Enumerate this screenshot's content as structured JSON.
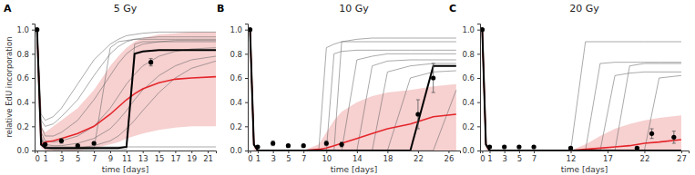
{
  "chart_data": [
    {
      "type": "line",
      "panel": "A",
      "title": "5 Gy",
      "x_label": "time [days]",
      "y_label": "relative EdU incorporation",
      "xlim": [
        -0.3,
        22
      ],
      "xticks": [
        0,
        1,
        3,
        5,
        7,
        9,
        11,
        13,
        15,
        17,
        19,
        21
      ],
      "ylim": [
        0,
        1.05
      ],
      "yticks": [
        {
          "value": 0,
          "label": "0.0"
        },
        0.2,
        0.4,
        0.6,
        0.8,
        {
          "value": 1,
          "label": "1.0"
        }
      ],
      "x": [
        0,
        0.5,
        1,
        2,
        3,
        5,
        7,
        9,
        10,
        11,
        12,
        13,
        15,
        17,
        19,
        22
      ],
      "series": [
        {
          "type": "band",
          "color": "#f6c8c8",
          "lower": [
            1,
            0.02,
            0,
            0,
            0,
            0,
            0.02,
            0.05,
            0.07,
            0.1,
            0.12,
            0.14,
            0.17,
            0.19,
            0.2,
            0.2
          ],
          "upper": [
            1,
            0.2,
            0.15,
            0.2,
            0.25,
            0.35,
            0.5,
            0.7,
            0.78,
            0.85,
            0.9,
            0.93,
            0.96,
            0.97,
            0.98,
            0.98
          ]
        },
        {
          "type": "line",
          "color": "#666666",
          "line_style": "thin",
          "values": [
            1,
            0.3,
            0.25,
            0.28,
            0.35,
            0.55,
            0.75,
            0.88,
            0.92,
            0.95,
            0.96,
            0.97,
            0.98,
            0.98,
            0.98,
            0.98
          ]
        },
        {
          "type": "line",
          "color": "#666666",
          "line_style": "thin",
          "values": [
            1,
            0.2,
            0.12,
            0.12,
            0.15,
            0.25,
            0.42,
            0.62,
            0.72,
            0.8,
            0.85,
            0.88,
            0.9,
            0.91,
            0.91,
            0.91
          ]
        },
        {
          "type": "line",
          "color": "#666666",
          "line_style": "thin",
          "values": [
            1,
            0.15,
            0.08,
            0.07,
            0.08,
            0.12,
            0.2,
            0.35,
            0.45,
            0.55,
            0.63,
            0.7,
            0.78,
            0.82,
            0.84,
            0.85
          ]
        },
        {
          "type": "line",
          "color": "#666666",
          "line_style": "thin",
          "values": [
            1,
            0.12,
            0.05,
            0.04,
            0.04,
            0.06,
            0.1,
            0.18,
            0.25,
            0.33,
            0.42,
            0.5,
            0.62,
            0.7,
            0.75,
            0.78
          ]
        },
        {
          "type": "line",
          "color": "#666666",
          "line_style": "thin",
          "values": [
            1,
            0.1,
            0.03,
            0.02,
            0.02,
            0.02,
            0.04,
            0.08,
            0.12,
            0.18,
            0.25,
            0.33,
            0.48,
            0.6,
            0.68,
            0.74
          ]
        },
        {
          "type": "line",
          "color": "#666666",
          "line_style": "thin",
          "values": [
            1,
            0.1,
            0.02,
            0.01,
            0.01,
            0.01,
            0.01,
            0.01,
            0.01,
            0.01,
            0.88,
            0.9,
            0.9,
            0.9,
            0.9,
            0.9
          ]
        },
        {
          "type": "line",
          "color": "#666666",
          "line_style": "thin",
          "values": [
            1,
            0.1,
            0.02,
            0.01,
            0.01,
            0.01,
            0.01,
            0.85,
            0.9,
            0.91,
            0.92,
            0.92,
            0.92,
            0.92,
            0.92,
            0.92
          ]
        },
        {
          "type": "line",
          "color": "#666666",
          "line_style": "thin",
          "values": [
            1,
            0.1,
            0.03,
            0.03,
            0.03,
            0.03,
            0.03,
            0.03,
            0.03,
            0.03,
            0.03,
            0.03,
            0.03,
            0.03,
            0.03,
            0.03
          ]
        },
        {
          "type": "line",
          "color": "#666666",
          "line_style": "thin",
          "values": [
            1,
            0.25,
            0.2,
            0.22,
            0.28,
            0.42,
            0.62,
            0.8,
            0.86,
            0.9,
            0.92,
            0.93,
            0.94,
            0.94,
            0.94,
            0.94
          ]
        },
        {
          "type": "line",
          "color": "#e4262b",
          "line_style": "solid",
          "values": [
            1,
            0.05,
            0.07,
            0.08,
            0.1,
            0.14,
            0.2,
            0.3,
            0.36,
            0.42,
            0.47,
            0.51,
            0.56,
            0.59,
            0.6,
            0.61
          ]
        },
        {
          "type": "line",
          "color": "#000000",
          "line_style": "solid",
          "values": [
            1,
            0.05,
            0.02,
            0.02,
            0.02,
            0.02,
            0.02,
            0.02,
            0.02,
            0.03,
            0.8,
            0.82,
            0.83,
            0.83,
            0.83,
            0.83
          ]
        },
        {
          "type": "scatter",
          "color": "#000000",
          "marker": "circle",
          "x": [
            0,
            1,
            3,
            5,
            7,
            14
          ],
          "values": [
            1,
            0.05,
            0.08,
            0.04,
            0.06,
            0.73
          ],
          "errors": [
            0,
            0.01,
            0.02,
            0.01,
            0.01,
            0.03
          ]
        }
      ]
    },
    {
      "type": "line",
      "panel": "B",
      "title": "10 Gy",
      "x_label": "time [days]",
      "xlim": [
        -0.3,
        27.5
      ],
      "xticks": [
        0,
        1,
        3,
        5,
        7,
        10,
        14,
        18,
        22,
        26
      ],
      "ylim": [
        0,
        1.05
      ],
      "yticks": [
        {
          "value": 0,
          "label": "0.0"
        },
        0.2,
        0.4,
        0.6,
        0.8,
        {
          "value": 1,
          "label": "1.0"
        }
      ],
      "x": [
        0,
        0.5,
        1,
        3,
        5,
        7,
        9,
        10,
        11,
        12,
        14,
        16,
        18,
        21,
        24,
        27
      ],
      "series": [
        {
          "type": "band",
          "color": "#f6c8c8",
          "lower": [
            1,
            0,
            0,
            0,
            0,
            0,
            0,
            0,
            0,
            0,
            0,
            0,
            0,
            0,
            0,
            0
          ],
          "upper": [
            1,
            0.05,
            0,
            0,
            0,
            0,
            0.05,
            0.15,
            0.25,
            0.32,
            0.4,
            0.45,
            0.48,
            0.5,
            0.53,
            0.55
          ]
        },
        {
          "type": "line",
          "color": "#666666",
          "line_style": "thin",
          "values": [
            1,
            0.05,
            0,
            0,
            0,
            0,
            0,
            0.85,
            0.88,
            0.9,
            0.9,
            0.9,
            0.9,
            0.9,
            0.9,
            0.9
          ]
        },
        {
          "type": "line",
          "color": "#666666",
          "line_style": "thin",
          "values": [
            1,
            0.05,
            0,
            0,
            0,
            0,
            0,
            0,
            0.8,
            0.82,
            0.83,
            0.83,
            0.83,
            0.83,
            0.83,
            0.83
          ]
        },
        {
          "type": "line",
          "color": "#666666",
          "line_style": "thin",
          "values": [
            1,
            0.05,
            0,
            0,
            0,
            0,
            0,
            0,
            0,
            0,
            0.75,
            0.78,
            0.8,
            0.8,
            0.8,
            0.8
          ]
        },
        {
          "type": "line",
          "color": "#666666",
          "line_style": "thin",
          "values": [
            1,
            0.05,
            0,
            0,
            0,
            0,
            0,
            0,
            0,
            0,
            0,
            0.7,
            0.74,
            0.75,
            0.75,
            0.75
          ]
        },
        {
          "type": "line",
          "color": "#666666",
          "line_style": "thin",
          "values": [
            1,
            0.05,
            0,
            0,
            0,
            0,
            0,
            0,
            0,
            0,
            0,
            0,
            0.65,
            0.7,
            0.72,
            0.72
          ]
        },
        {
          "type": "line",
          "color": "#666666",
          "line_style": "thin",
          "values": [
            1,
            0.05,
            0,
            0,
            0,
            0,
            0,
            0,
            0,
            0,
            0,
            0,
            0,
            0.6,
            0.65,
            0.66
          ]
        },
        {
          "type": "line",
          "color": "#666666",
          "line_style": "thin",
          "values": [
            1,
            0.05,
            0,
            0,
            0,
            0,
            0,
            0,
            0,
            0.9,
            0.92,
            0.93,
            0.93,
            0.93,
            0.93,
            0.93
          ]
        },
        {
          "type": "line",
          "color": "#666666",
          "line_style": "thin",
          "values": [
            1,
            0.05,
            0,
            0,
            0,
            0,
            0,
            0,
            0,
            0,
            0,
            0,
            0,
            0,
            0,
            0.5
          ]
        },
        {
          "type": "line",
          "color": "#e4262b",
          "line_style": "solid",
          "values": [
            1,
            0.05,
            0,
            0,
            0,
            0,
            0.01,
            0.02,
            0.04,
            0.06,
            0.1,
            0.14,
            0.18,
            0.22,
            0.28,
            0.3
          ]
        },
        {
          "type": "line",
          "color": "#000000",
          "line_style": "solid",
          "values": [
            1,
            0.05,
            0,
            0,
            0,
            0,
            0,
            0,
            0,
            0,
            0,
            0,
            0,
            0,
            0.7,
            0.7
          ]
        },
        {
          "type": "scatter",
          "color": "#000000",
          "marker": "circle",
          "x": [
            0,
            1,
            3,
            5,
            7,
            10,
            12,
            22,
            24
          ],
          "values": [
            1,
            0.03,
            0.06,
            0.04,
            0.04,
            0.06,
            0.05,
            0.3,
            0.6
          ],
          "errors": [
            0,
            0.01,
            0.02,
            0.01,
            0.01,
            0.02,
            0.02,
            0.12,
            0.12
          ]
        }
      ]
    },
    {
      "type": "line",
      "panel": "C",
      "title": "20 Gy",
      "x_label": "time [days]",
      "xlim": [
        -0.3,
        28
      ],
      "xticks": [
        0,
        1,
        3,
        5,
        7,
        12,
        17,
        22,
        27
      ],
      "ylim": [
        0,
        1.05
      ],
      "yticks": [
        {
          "value": 0,
          "label": "0.0"
        },
        0.2,
        0.4,
        0.6,
        0.8,
        {
          "value": 1,
          "label": "1.0"
        }
      ],
      "x": [
        0,
        0.5,
        1,
        3,
        5,
        7,
        10,
        12,
        14,
        16,
        18,
        20,
        22,
        24,
        27
      ],
      "series": [
        {
          "type": "band",
          "color": "#f6c8c8",
          "lower": [
            1,
            0,
            0,
            0,
            0,
            0,
            0,
            0,
            0,
            0,
            0,
            0,
            0,
            0,
            0
          ],
          "upper": [
            1,
            0.05,
            0,
            0,
            0,
            0,
            0,
            0,
            0.05,
            0.12,
            0.18,
            0.22,
            0.25,
            0.27,
            0.29
          ]
        },
        {
          "type": "line",
          "color": "#666666",
          "line_style": "thin",
          "values": [
            1,
            0.05,
            0,
            0,
            0,
            0,
            0,
            0,
            0.9,
            0.9,
            0.9,
            0.9,
            0.9,
            0.9,
            0.9
          ]
        },
        {
          "type": "line",
          "color": "#666666",
          "line_style": "thin",
          "values": [
            1,
            0.05,
            0,
            0,
            0,
            0,
            0,
            0,
            0,
            0.72,
            0.73,
            0.73,
            0.73,
            0.73,
            0.73
          ]
        },
        {
          "type": "line",
          "color": "#666666",
          "line_style": "thin",
          "values": [
            1,
            0.05,
            0,
            0,
            0,
            0,
            0,
            0,
            0,
            0,
            0.62,
            0.64,
            0.65,
            0.65,
            0.65
          ]
        },
        {
          "type": "line",
          "color": "#666666",
          "line_style": "thin",
          "values": [
            1,
            0.05,
            0,
            0,
            0,
            0,
            0,
            0,
            0,
            0,
            0,
            0.7,
            0.72,
            0.72,
            0.72
          ]
        },
        {
          "type": "line",
          "color": "#666666",
          "line_style": "thin",
          "values": [
            1,
            0.05,
            0,
            0,
            0,
            0,
            0,
            0,
            0,
            0,
            0,
            0,
            0,
            0.6,
            0.62
          ]
        },
        {
          "type": "line",
          "color": "#e4262b",
          "line_style": "solid",
          "values": [
            1,
            0.05,
            0,
            0,
            0,
            0,
            0,
            0,
            0.01,
            0.02,
            0.03,
            0.04,
            0.06,
            0.07,
            0.09
          ]
        },
        {
          "type": "line",
          "color": "#000000",
          "line_style": "solid",
          "values": [
            1,
            0.05,
            0,
            0,
            0,
            0,
            0,
            0,
            0,
            0,
            0,
            0,
            0,
            0,
            0
          ]
        },
        {
          "type": "scatter",
          "color": "#000000",
          "marker": "circle",
          "x": [
            0,
            1,
            3,
            5,
            7,
            12,
            21,
            23,
            26
          ],
          "values": [
            1,
            0.03,
            0.03,
            0.03,
            0.03,
            0.02,
            0.02,
            0.14,
            0.11
          ],
          "errors": [
            0,
            0.01,
            0.01,
            0.01,
            0.01,
            0.01,
            0.01,
            0.04,
            0.05
          ]
        }
      ]
    }
  ]
}
